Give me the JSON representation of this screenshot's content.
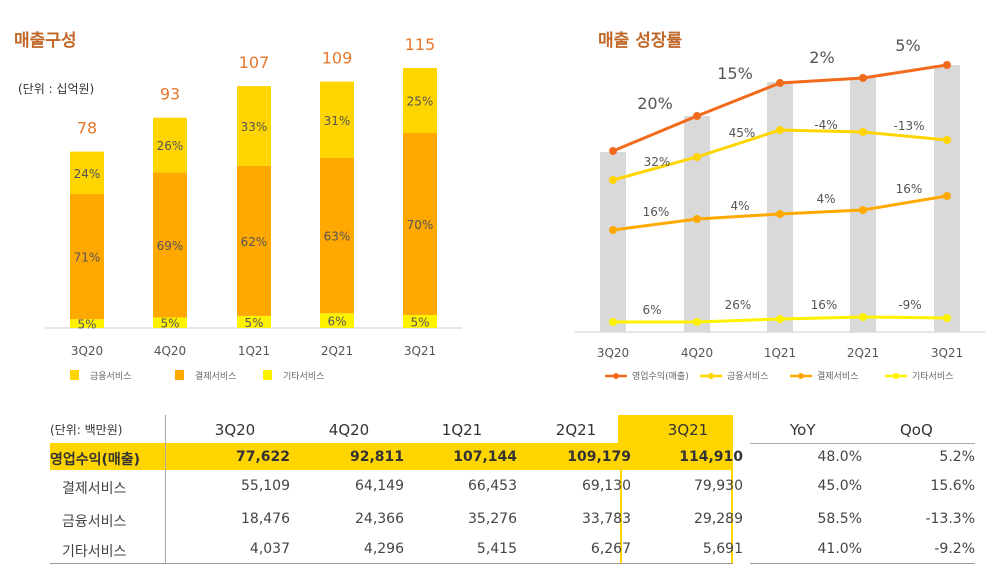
{
  "left": {
    "title": "매출구성",
    "unit": "(단위 : 십억원)"
  },
  "right": {
    "title": "매출 성장률"
  },
  "colors": {
    "finance": "#FFD500",
    "payment": "#FFA800",
    "other": "#FFF200",
    "revenue": "#F26B1D",
    "bar": "#D9D9D9",
    "total_label": "#E8772E"
  },
  "chart_data": [
    {
      "type": "bar",
      "stacked": true,
      "title": "매출구성",
      "categories": [
        "3Q20",
        "4Q20",
        "1Q21",
        "2Q21",
        "3Q21"
      ],
      "totals": [
        78,
        93,
        107,
        109,
        115
      ],
      "series": [
        {
          "name": "기타서비스",
          "values": [
            "5%",
            "5%",
            "5%",
            "6%",
            "5%"
          ],
          "share": [
            5,
            5,
            5,
            6,
            5
          ]
        },
        {
          "name": "결제서비스",
          "values": [
            "71%",
            "69%",
            "62%",
            "63%",
            "70%"
          ],
          "share": [
            71,
            69,
            62,
            63,
            70
          ]
        },
        {
          "name": "금융서비스",
          "values": [
            "24%",
            "26%",
            "33%",
            "31%",
            "25%"
          ],
          "share": [
            24,
            26,
            33,
            31,
            25
          ]
        }
      ],
      "ylim": [
        0,
        115
      ]
    },
    {
      "type": "line",
      "title": "매출 성장률",
      "categories": [
        "3Q20",
        "4Q20",
        "1Q21",
        "2Q21",
        "3Q21"
      ],
      "bars": [
        77622,
        92811,
        107144,
        109179,
        114910
      ],
      "series": [
        {
          "name": "영업수익(매출)",
          "labels": [
            "20%",
            "15%",
            "2%",
            "5%"
          ]
        },
        {
          "name": "금융서비스",
          "labels": [
            "32%",
            "45%",
            "-4%",
            "-13%"
          ]
        },
        {
          "name": "결제서비스",
          "labels": [
            "16%",
            "4%",
            "4%",
            "16%"
          ]
        },
        {
          "name": "기타서비스",
          "labels": [
            "6%",
            "26%",
            "16%",
            "-9%"
          ]
        }
      ]
    }
  ],
  "table": {
    "unit": "(단위: 백만원)",
    "columns": [
      "3Q20",
      "4Q20",
      "1Q21",
      "2Q21",
      "3Q21"
    ],
    "yoy": "YoY",
    "qoq": "QoQ",
    "rows": [
      {
        "label": "영업수익(매출)",
        "values": [
          "77,622",
          "92,811",
          "107,144",
          "109,179",
          "114,910"
        ],
        "yoy": "48.0%",
        "qoq": "5.2%"
      },
      {
        "label": "결제서비스",
        "values": [
          "55,109",
          "64,149",
          "66,453",
          "69,130",
          "79,930"
        ],
        "yoy": "45.0%",
        "qoq": "15.6%"
      },
      {
        "label": "금융서비스",
        "values": [
          "18,476",
          "24,366",
          "35,276",
          "33,783",
          "29,289"
        ],
        "yoy": "58.5%",
        "qoq": "-13.3%"
      },
      {
        "label": "기타서비스",
        "values": [
          "4,037",
          "4,296",
          "5,415",
          "6,267",
          "5,691"
        ],
        "yoy": "41.0%",
        "qoq": "-9.2%"
      }
    ]
  }
}
